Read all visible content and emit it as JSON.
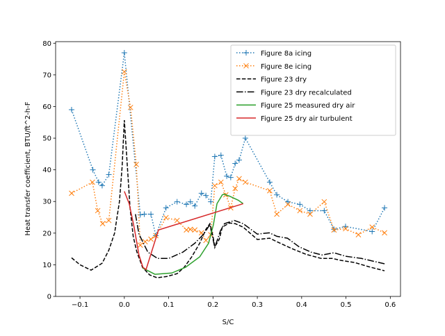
{
  "chart_data": {
    "type": "line",
    "xlabel": "S/C",
    "ylabel": "Heat transfer coefficient, BTU/ft^2-h-F",
    "xlim": [
      -0.155,
      0.623
    ],
    "ylim": [
      0,
      80.5
    ],
    "xticks": [
      -0.1,
      0.0,
      0.1,
      0.2,
      0.3,
      0.4,
      0.5,
      0.6
    ],
    "xtick_labels": [
      "−0.1",
      "0.0",
      "0.1",
      "0.2",
      "0.3",
      "0.4",
      "0.5",
      "0.6"
    ],
    "yticks": [
      0,
      10,
      20,
      30,
      40,
      50,
      60,
      70,
      80
    ],
    "ytick_labels": [
      "0",
      "10",
      "20",
      "30",
      "40",
      "50",
      "60",
      "70",
      "80"
    ],
    "grid": false,
    "legend_position": "top-right",
    "series": [
      {
        "name": "Figure 8a icing",
        "color": "#1f77b4",
        "style": "dotted",
        "marker": "plus",
        "x": [
          -0.119,
          -0.071,
          -0.058,
          -0.05,
          -0.035,
          0.0,
          0.036,
          0.045,
          0.06,
          0.071,
          0.094,
          0.119,
          0.14,
          0.149,
          0.159,
          0.174,
          0.184,
          0.195,
          0.204,
          0.218,
          0.231,
          0.24,
          0.25,
          0.259,
          0.273,
          0.328,
          0.344,
          0.369,
          0.396,
          0.419,
          0.451,
          0.473,
          0.499,
          0.559,
          0.587
        ],
        "y": [
          59.0,
          40.0,
          36.1,
          35.0,
          38.5,
          77.0,
          25.8,
          26.0,
          26.0,
          19.2,
          28.0,
          29.9,
          29.1,
          29.9,
          28.6,
          32.6,
          31.9,
          29.9,
          44.2,
          44.6,
          38.0,
          37.6,
          42.0,
          43.1,
          50.0,
          36.1,
          32.1,
          29.9,
          29.1,
          27.1,
          27.1,
          21.2,
          22.1,
          20.5,
          28.0
        ]
      },
      {
        "name": "Figure 8e icing",
        "color": "#ff7f0e",
        "style": "dotted",
        "marker": "x",
        "x": [
          -0.119,
          -0.072,
          -0.06,
          -0.049,
          -0.035,
          0.0,
          0.014,
          0.027,
          0.036,
          0.047,
          0.06,
          0.071,
          0.094,
          0.119,
          0.14,
          0.149,
          0.159,
          0.174,
          0.184,
          0.195,
          0.204,
          0.218,
          0.229,
          0.24,
          0.25,
          0.259,
          0.273,
          0.328,
          0.344,
          0.369,
          0.396,
          0.419,
          0.451,
          0.473,
          0.499,
          0.528,
          0.559,
          0.587
        ],
        "y": [
          32.6,
          36.1,
          27.1,
          23.0,
          24.0,
          71.0,
          59.7,
          41.7,
          16.2,
          17.3,
          18.1,
          19.2,
          24.9,
          24.0,
          21.0,
          21.2,
          21.0,
          20.1,
          17.7,
          19.5,
          35.0,
          36.1,
          32.1,
          28.0,
          34.1,
          37.2,
          36.1,
          33.4,
          26.0,
          29.1,
          27.1,
          26.0,
          29.9,
          21.0,
          21.4,
          19.5,
          21.9,
          20.1
        ]
      },
      {
        "name": "Figure 23 dry",
        "color": "#000000",
        "style": "dashed",
        "marker": "none",
        "x": [
          -0.119,
          -0.1,
          -0.075,
          -0.05,
          -0.035,
          -0.022,
          -0.011,
          -0.005,
          0.0,
          0.005,
          0.013,
          0.02,
          0.028,
          0.041,
          0.057,
          0.074,
          0.096,
          0.119,
          0.135,
          0.152,
          0.17,
          0.184,
          0.193,
          0.2,
          0.204,
          0.214,
          0.221,
          0.237,
          0.25,
          0.268,
          0.3,
          0.328,
          0.344,
          0.378,
          0.41,
          0.444,
          0.469,
          0.488,
          0.52,
          0.551,
          0.587
        ],
        "y": [
          12.2,
          10.0,
          8.3,
          10.5,
          14.6,
          20.0,
          30.0,
          41.0,
          55.7,
          45.0,
          27.8,
          19.0,
          14.2,
          9.2,
          6.8,
          5.9,
          6.3,
          7.2,
          9.2,
          12.5,
          16.8,
          21.2,
          23.0,
          19.0,
          15.7,
          18.0,
          21.9,
          23.2,
          23.0,
          21.9,
          18.0,
          18.4,
          17.3,
          15.1,
          13.3,
          12.0,
          12.0,
          11.4,
          10.7,
          9.4,
          8.1
        ]
      },
      {
        "name": "Figure 23 dry recalculated",
        "color": "#000000",
        "style": "dashdot",
        "marker": "none",
        "x": [
          0.025,
          0.033,
          0.053,
          0.075,
          0.1,
          0.132,
          0.159,
          0.179,
          0.193,
          0.204,
          0.217,
          0.226,
          0.248,
          0.268,
          0.3,
          0.327,
          0.344,
          0.368,
          0.394,
          0.421,
          0.446,
          0.473,
          0.499,
          0.535,
          0.587
        ],
        "y": [
          26.0,
          19.7,
          14.0,
          12.0,
          12.0,
          14.0,
          16.8,
          19.7,
          22.7,
          15.5,
          20.8,
          23.0,
          24.0,
          23.0,
          19.7,
          20.1,
          19.0,
          18.4,
          15.7,
          14.0,
          13.1,
          13.8,
          12.7,
          12.0,
          10.3
        ]
      },
      {
        "name": "Figure 25 measured dry air",
        "color": "#2ca02c",
        "style": "solid",
        "marker": "none",
        "x": [
          0.041,
          0.069,
          0.107,
          0.138,
          0.17,
          0.19,
          0.201,
          0.209,
          0.221,
          0.225,
          0.237,
          0.257,
          0.268
        ],
        "y": [
          9.0,
          7.0,
          7.4,
          9.2,
          12.5,
          16.8,
          22.7,
          29.3,
          32.1,
          32.3,
          31.7,
          30.4,
          29.3
        ]
      },
      {
        "name": "Figure 25 dry air turbulent",
        "color": "#d62728",
        "style": "solid",
        "marker": "none",
        "x": [
          0.0,
          0.011,
          0.022,
          0.033,
          0.042,
          0.049,
          0.077,
          0.268
        ],
        "y": [
          33.2,
          29.3,
          21.9,
          13.1,
          9.2,
          8.5,
          21.0,
          29.3
        ]
      }
    ]
  }
}
